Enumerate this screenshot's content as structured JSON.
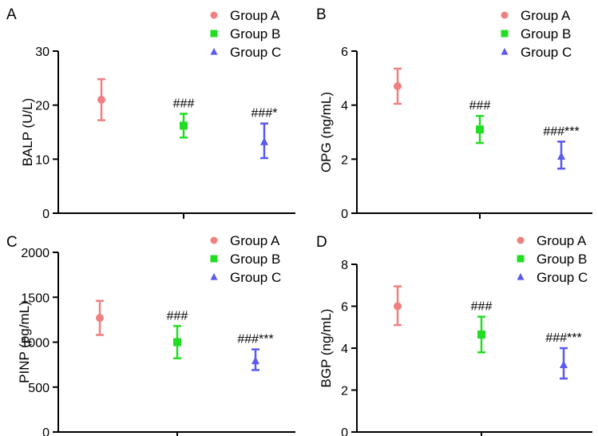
{
  "colors": {
    "Group A": "#f08080",
    "Group B": "#22dd22",
    "Group C": "#5a5aee",
    "axis": "#000000"
  },
  "chart_data": [
    {
      "panel": "A",
      "type": "scatter",
      "ylabel": "BALP (U/L)",
      "ylim": [
        0,
        30
      ],
      "yticks": [
        "0",
        "10",
        "20",
        "30"
      ],
      "legend": [
        "Group A",
        "Group B",
        "Group C"
      ],
      "legend_position": "top-right",
      "grid": false,
      "series": [
        {
          "name": "Group A",
          "marker": "circle",
          "mean": 21.0,
          "err_low": 17.2,
          "err_high": 24.8,
          "annotation": ""
        },
        {
          "name": "Group B",
          "marker": "square",
          "mean": 16.2,
          "err_low": 14.0,
          "err_high": 18.4,
          "annotation": "###"
        },
        {
          "name": "Group C",
          "marker": "triangle",
          "mean": 13.2,
          "err_low": 10.2,
          "err_high": 16.6,
          "annotation": "###*"
        }
      ]
    },
    {
      "panel": "B",
      "type": "scatter",
      "ylabel": "OPG (ng/mL)",
      "ylim": [
        0,
        6
      ],
      "yticks": [
        "0",
        "2",
        "4",
        "6"
      ],
      "legend": [
        "Group A",
        "Group B",
        "Group C"
      ],
      "legend_position": "top-right",
      "grid": false,
      "series": [
        {
          "name": "Group A",
          "marker": "circle",
          "mean": 4.7,
          "err_low": 4.05,
          "err_high": 5.35,
          "annotation": ""
        },
        {
          "name": "Group B",
          "marker": "square",
          "mean": 3.1,
          "err_low": 2.6,
          "err_high": 3.6,
          "annotation": "###"
        },
        {
          "name": "Group C",
          "marker": "triangle",
          "mean": 2.1,
          "err_low": 1.65,
          "err_high": 2.65,
          "annotation": "###***"
        }
      ]
    },
    {
      "panel": "C",
      "type": "scatter",
      "ylabel": "PINP (pg/mL)",
      "ylim": [
        0,
        2000
      ],
      "yticks": [
        "0",
        "500",
        "1000",
        "1500",
        "2000"
      ],
      "legend": [
        "Group A",
        "Group B",
        "Group C"
      ],
      "legend_position": "top-right",
      "grid": false,
      "series": [
        {
          "name": "Group A",
          "marker": "circle",
          "mean": 1270,
          "err_low": 1080,
          "err_high": 1460,
          "annotation": ""
        },
        {
          "name": "Group B",
          "marker": "square",
          "mean": 1000,
          "err_low": 820,
          "err_high": 1180,
          "annotation": "###"
        },
        {
          "name": "Group C",
          "marker": "triangle",
          "mean": 790,
          "err_low": 690,
          "err_high": 920,
          "annotation": "###***"
        }
      ]
    },
    {
      "panel": "D",
      "type": "scatter",
      "ylabel": "BGP (ng/mL)",
      "ylim": [
        0,
        8
      ],
      "yticks": [
        "0",
        "2",
        "4",
        "6",
        "8"
      ],
      "legend": [
        "Group A",
        "Group B",
        "Group C"
      ],
      "legend_position": "top-right",
      "grid": false,
      "series": [
        {
          "name": "Group A",
          "marker": "circle",
          "mean": 6.0,
          "err_low": 5.1,
          "err_high": 6.95,
          "annotation": ""
        },
        {
          "name": "Group B",
          "marker": "square",
          "mean": 4.65,
          "err_low": 3.8,
          "err_high": 5.5,
          "annotation": "###"
        },
        {
          "name": "Group C",
          "marker": "triangle",
          "mean": 3.2,
          "err_low": 2.55,
          "err_high": 4.0,
          "annotation": "###***"
        }
      ]
    }
  ]
}
